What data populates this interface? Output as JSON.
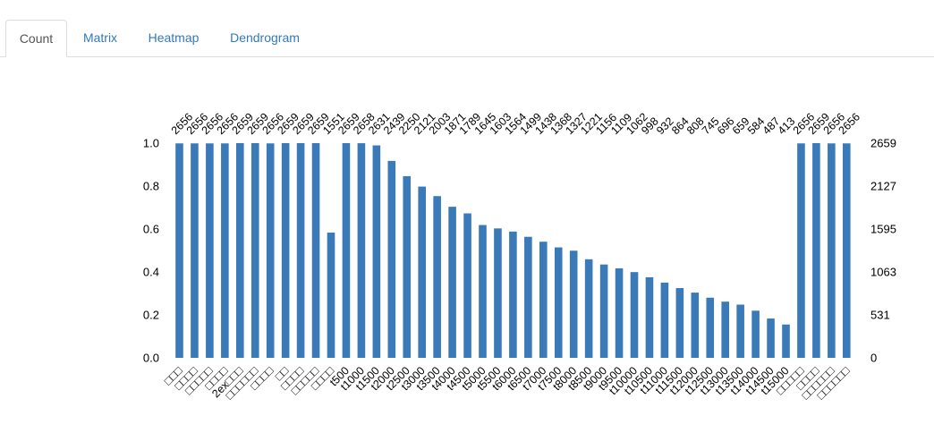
{
  "tabs": [
    {
      "label": "Count",
      "active": true
    },
    {
      "label": "Matrix",
      "active": false
    },
    {
      "label": "Heatmap",
      "active": false
    },
    {
      "label": "Dendrogram",
      "active": false
    }
  ],
  "colors": {
    "bar": "#3a7ab8",
    "tab_link": "#337ab7",
    "tab_active": "#555555",
    "label_faded": "#cccccc"
  },
  "chart_data": {
    "type": "bar",
    "categories": [
      "□□□",
      "□□□□",
      "□□□□□",
      "□□□□",
      "2ex□□□",
      "□□□□□□",
      "□□□□",
      "□□",
      "□□□□",
      "□□□□□",
      "□□□□",
      "t500",
      "t1000",
      "t1500",
      "t2000",
      "t2500",
      "t3000",
      "t3500",
      "t4000",
      "t4500",
      "t5000",
      "t5500",
      "t6000",
      "t6500",
      "t7000",
      "t7500",
      "t8000",
      "t8500",
      "t9000",
      "t9500",
      "t10000",
      "t10500",
      "t11000",
      "t11500",
      "t12000",
      "t12500",
      "t13000",
      "t13500",
      "t14000",
      "t14500",
      "t15000",
      "□□□□□",
      "□□□□",
      "□□□□□□",
      "□□□□□□"
    ],
    "counts": [
      2656,
      2656,
      2656,
      2656,
      2659,
      2659,
      2656,
      2659,
      2659,
      2659,
      1551,
      2659,
      2658,
      2631,
      2439,
      2250,
      2121,
      2003,
      1871,
      1789,
      1645,
      1603,
      1564,
      1499,
      1438,
      1368,
      1327,
      1221,
      1156,
      1109,
      1062,
      998,
      932,
      864,
      808,
      745,
      696,
      659,
      584,
      487,
      413,
      2656,
      2659,
      2656,
      2656
    ],
    "max_count": 2659,
    "left_axis": {
      "ticks": [
        "0.0",
        "0.2",
        "0.4",
        "0.6",
        "0.8",
        "1.0"
      ],
      "ylim": [
        0,
        1
      ]
    },
    "right_axis": {
      "ticks": [
        "0",
        "531",
        "1063",
        "1595",
        "2127",
        "2659"
      ]
    },
    "grid": false
  }
}
